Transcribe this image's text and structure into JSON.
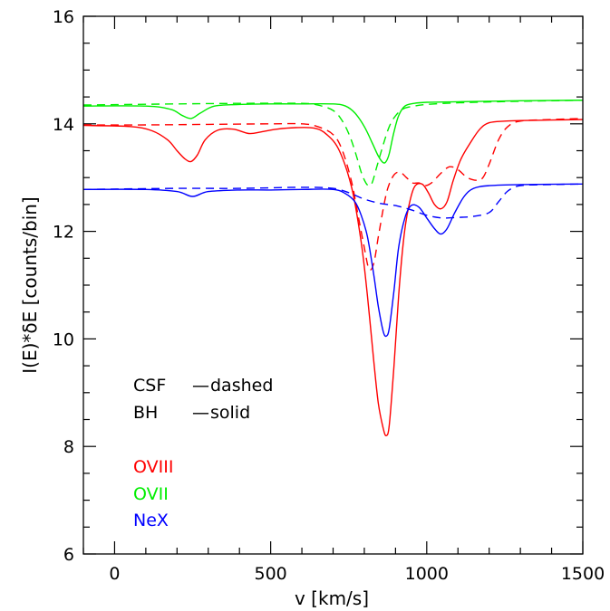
{
  "chart_data": {
    "type": "line",
    "xlabel": "v [km/s]",
    "ylabel": "I(E)*δE [counts/bin]",
    "xlim": [
      -100,
      1500
    ],
    "ylim": [
      6,
      16
    ],
    "x_ticks": [
      0,
      500,
      1000,
      1500
    ],
    "y_ticks": [
      6,
      8,
      10,
      12,
      14,
      16
    ],
    "grid": false,
    "colors": {
      "OVIII": "#ff0000",
      "OVII": "#00ee00",
      "NeX": "#0000ff"
    },
    "annotations": {
      "line1_label": "CSF",
      "line1_dash": "—",
      "line1_style": "dashed",
      "line2_label": "BH",
      "line2_dash": "—",
      "line2_style": "solid"
    },
    "legend_placement": "bottom-left",
    "series": [
      {
        "name": "OVIII",
        "style": "solid",
        "color": "#ff0000",
        "x": [
          -100,
          50,
          120,
          170,
          200,
          225,
          245,
          265,
          290,
          330,
          380,
          430,
          470,
          520,
          580,
          640,
          680,
          720,
          760,
          790,
          810,
          830,
          845,
          860,
          870,
          880,
          895,
          910,
          925,
          940,
          960,
          985,
          1005,
          1025,
          1045,
          1065,
          1085,
          1110,
          1140,
          1170,
          1200,
          1250,
          1300,
          1400,
          1500
        ],
        "y": [
          13.97,
          13.95,
          13.87,
          13.7,
          13.5,
          13.35,
          13.3,
          13.42,
          13.7,
          13.88,
          13.9,
          13.82,
          13.85,
          13.9,
          13.93,
          13.92,
          13.8,
          13.5,
          12.8,
          11.8,
          10.8,
          9.6,
          8.8,
          8.35,
          8.2,
          8.4,
          9.5,
          10.8,
          11.8,
          12.4,
          12.82,
          12.88,
          12.72,
          12.5,
          12.42,
          12.55,
          12.95,
          13.35,
          13.65,
          13.9,
          14.02,
          14.05,
          14.06,
          14.07,
          14.08
        ]
      },
      {
        "name": "OVIII",
        "style": "dashed",
        "color": "#ff0000",
        "x": [
          -100,
          100,
          300,
          500,
          600,
          650,
          700,
          730,
          760,
          780,
          800,
          815,
          830,
          845,
          860,
          875,
          895,
          915,
          935,
          955,
          975,
          995,
          1015,
          1040,
          1065,
          1080,
          1100,
          1130,
          1160,
          1180,
          1200,
          1230,
          1260,
          1300,
          1400,
          1500
        ],
        "y": [
          13.98,
          13.98,
          13.99,
          14.0,
          14.0,
          13.95,
          13.8,
          13.5,
          12.9,
          12.3,
          11.7,
          11.3,
          11.4,
          11.9,
          12.4,
          12.8,
          13.05,
          13.1,
          13.0,
          12.9,
          12.9,
          12.85,
          12.9,
          13.05,
          13.18,
          13.2,
          13.15,
          13.0,
          12.95,
          13.0,
          13.25,
          13.7,
          13.95,
          14.05,
          14.08,
          14.1
        ]
      },
      {
        "name": "OVII",
        "style": "solid",
        "color": "#00ee00",
        "x": [
          -100,
          100,
          180,
          215,
          245,
          275,
          320,
          400,
          500,
          600,
          700,
          740,
          770,
          800,
          825,
          845,
          860,
          870,
          880,
          895,
          910,
          930,
          960,
          1000,
          1100,
          1300,
          1500
        ],
        "y": [
          14.33,
          14.33,
          14.27,
          14.16,
          14.1,
          14.2,
          14.33,
          14.36,
          14.37,
          14.37,
          14.37,
          14.33,
          14.2,
          13.95,
          13.65,
          13.4,
          13.28,
          13.3,
          13.45,
          13.85,
          14.15,
          14.33,
          14.38,
          14.4,
          14.41,
          14.43,
          14.44
        ]
      },
      {
        "name": "OVII",
        "style": "dashed",
        "color": "#00ee00",
        "x": [
          -100,
          200,
          400,
          600,
          650,
          700,
          730,
          755,
          775,
          790,
          805,
          815,
          825,
          840,
          860,
          880,
          900,
          925,
          960,
          1000,
          1100,
          1300,
          1500
        ],
        "y": [
          14.35,
          14.37,
          14.38,
          14.38,
          14.35,
          14.25,
          14.05,
          13.75,
          13.4,
          13.1,
          12.9,
          12.85,
          12.9,
          13.2,
          13.6,
          13.95,
          14.15,
          14.28,
          14.33,
          14.36,
          14.39,
          14.42,
          14.44
        ]
      },
      {
        "name": "NeX",
        "style": "solid",
        "color": "#0000ff",
        "x": [
          -100,
          100,
          200,
          250,
          300,
          400,
          500,
          600,
          700,
          740,
          770,
          790,
          810,
          830,
          845,
          860,
          870,
          880,
          895,
          910,
          930,
          950,
          975,
          1000,
          1025,
          1045,
          1065,
          1090,
          1120,
          1150,
          1200,
          1300,
          1500
        ],
        "y": [
          12.78,
          12.78,
          12.74,
          12.65,
          12.74,
          12.77,
          12.77,
          12.78,
          12.78,
          12.7,
          12.55,
          12.3,
          11.9,
          11.2,
          10.6,
          10.15,
          10.05,
          10.2,
          10.9,
          11.7,
          12.25,
          12.48,
          12.45,
          12.25,
          12.05,
          11.95,
          12.05,
          12.35,
          12.65,
          12.8,
          12.85,
          12.87,
          12.88
        ]
      },
      {
        "name": "NeX",
        "style": "dashed",
        "color": "#0000ff",
        "x": [
          -100,
          200,
          400,
          600,
          700,
          750,
          800,
          850,
          900,
          950,
          1000,
          1050,
          1100,
          1150,
          1200,
          1230,
          1260,
          1300,
          1400,
          1500
        ],
        "y": [
          12.78,
          12.8,
          12.8,
          12.82,
          12.8,
          12.72,
          12.6,
          12.52,
          12.48,
          12.4,
          12.3,
          12.25,
          12.26,
          12.28,
          12.35,
          12.55,
          12.75,
          12.85,
          12.87,
          12.88
        ]
      }
    ]
  }
}
